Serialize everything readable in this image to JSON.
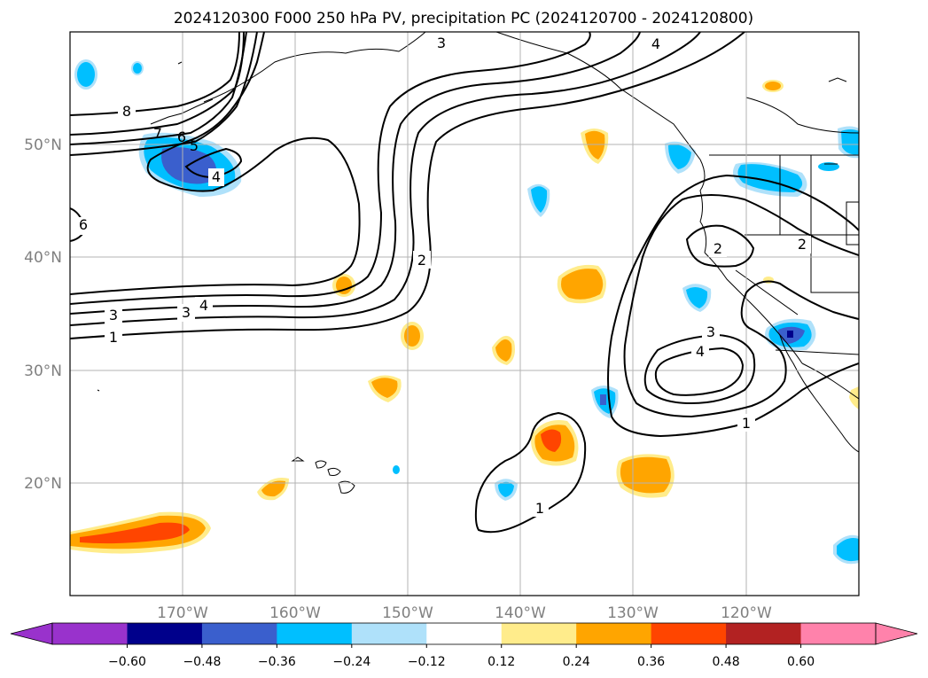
{
  "title": "2024120300 F000 250 hPa PV, precipitation PC (2024120700 - 2024120800)",
  "longitude_ticks": [
    "170°W",
    "160°W",
    "150°W",
    "140°W",
    "130°W",
    "120°W"
  ],
  "latitude_ticks": [
    "20°N",
    "30°N",
    "40°N",
    "50°N"
  ],
  "colorbar": {
    "tick_labels": [
      "−0.60",
      "−0.48",
      "−0.36",
      "−0.24",
      "−0.12",
      "0.12",
      "0.24",
      "0.36",
      "0.48",
      "0.60"
    ],
    "colors": [
      "#9932cc",
      "#00008b",
      "#3a5fcd",
      "#00bfff",
      "#afe1fa",
      "#ffffff",
      "#ffec8b",
      "#ffa500",
      "#ff4500",
      "#b22222",
      "#ff82ab"
    ]
  },
  "contour_labels": [
    "1",
    "1",
    "1",
    "2",
    "2",
    "2",
    "3",
    "3",
    "3",
    "3",
    "4",
    "4",
    "4",
    "4",
    "5",
    "6",
    "6",
    "7",
    "8"
  ],
  "palette": {
    "neg_light": "#afe1fa",
    "neg_mid": "#00bfff",
    "neg_strong": "#3a5fcd",
    "neg_max": "#00008b",
    "pos_light": "#ffec8b",
    "pos_mid": "#ffa500",
    "pos_strong": "#ff4500"
  }
}
